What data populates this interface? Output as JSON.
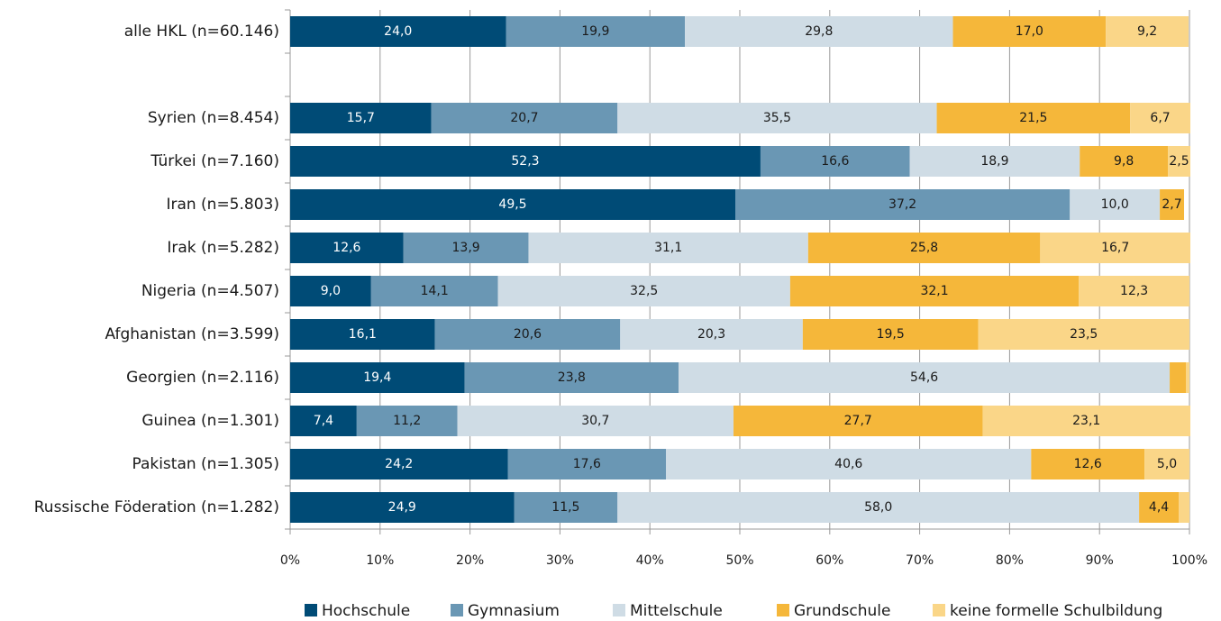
{
  "chart_data": {
    "type": "stacked_barh",
    "categories": [
      "alle HKL (n=60.146)",
      null,
      "Syrien (n=8.454)",
      "Türkei (n=7.160)",
      "Iran (n=5.803)",
      "Irak (n=5.282)",
      "Nigeria (n=4.507)",
      "Afghanistan (n=3.599)",
      "Georgien (n=2.116)",
      "Guinea (n=1.301)",
      "Pakistan (n=1.305)",
      "Russische Föderation (n=1.282)"
    ],
    "series": [
      {
        "name": "Hochschule",
        "color": "#004b76",
        "values": [
          24.0,
          null,
          15.7,
          52.3,
          49.5,
          12.6,
          9.0,
          16.1,
          19.4,
          7.4,
          24.2,
          24.9
        ],
        "value_labels": [
          "24,0",
          null,
          "15,7",
          "52,3",
          "49,5",
          "12,6",
          "9,0",
          "16,1",
          "19,4",
          "7,4",
          "24,2",
          "24,9"
        ]
      },
      {
        "name": "Gymnasium",
        "color": "#6a97b4",
        "values": [
          19.9,
          null,
          20.7,
          16.6,
          37.2,
          13.9,
          14.1,
          20.6,
          23.8,
          11.2,
          17.6,
          11.5
        ],
        "value_labels": [
          "19,9",
          null,
          "20,7",
          "16,6",
          "37,2",
          "13,9",
          "14,1",
          "20,6",
          "23,8",
          "11,2",
          "17,6",
          "11,5"
        ]
      },
      {
        "name": "Mittelschule",
        "color": "#cfdce5",
        "values": [
          29.8,
          null,
          35.5,
          18.9,
          10.0,
          31.1,
          32.5,
          20.3,
          54.6,
          30.7,
          40.6,
          58.0
        ],
        "value_labels": [
          "29,8",
          null,
          "35,5",
          "18,9",
          "10,0",
          "31,1",
          "32,5",
          "20,3",
          "54,6",
          "30,7",
          "40,6",
          "58,0"
        ]
      },
      {
        "name": "Grundschule",
        "color": "#f5b73a",
        "values": [
          17.0,
          null,
          21.5,
          9.8,
          2.7,
          25.8,
          32.1,
          19.5,
          1.8,
          27.7,
          12.6,
          4.4
        ],
        "value_labels": [
          "17,0",
          null,
          "21,5",
          "9,8",
          "2,7",
          "25,8",
          "32,1",
          "19,5",
          null,
          "27,7",
          "12,6",
          "4,4"
        ]
      },
      {
        "name": "keine formelle Schulbildung",
        "color": "#fad688",
        "values": [
          9.2,
          null,
          6.7,
          2.5,
          null,
          16.7,
          12.3,
          23.5,
          0.4,
          23.1,
          5.0,
          1.2
        ],
        "value_labels": [
          "9,2",
          null,
          "6,7",
          "2,5",
          null,
          "16,7",
          "12,3",
          "23,5",
          null,
          "23,1",
          "5,0",
          null
        ]
      }
    ],
    "xlim": [
      0,
      100
    ],
    "xticks": [
      {
        "value": 0,
        "label": "0%"
      },
      {
        "value": 10,
        "label": "10%"
      },
      {
        "value": 20,
        "label": "20%"
      },
      {
        "value": 30,
        "label": "30%"
      },
      {
        "value": 40,
        "label": "40%"
      },
      {
        "value": 50,
        "label": "50%"
      },
      {
        "value": 60,
        "label": "60%"
      },
      {
        "value": 70,
        "label": "70%"
      },
      {
        "value": 80,
        "label": "80%"
      },
      {
        "value": 90,
        "label": "90%"
      },
      {
        "value": 100,
        "label": "100%"
      }
    ],
    "grid": true
  }
}
